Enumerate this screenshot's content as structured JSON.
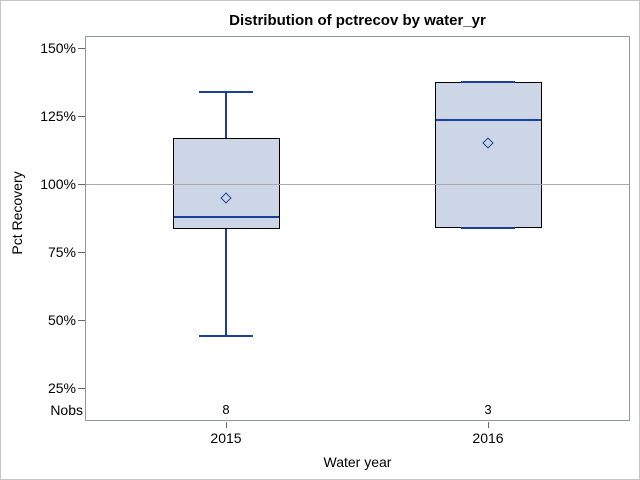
{
  "chart_data": {
    "type": "boxplot",
    "title": "Distribution of pctrecov by water_yr",
    "xlabel": "Water year",
    "ylabel": "Pct Recovery",
    "nobs_label": "Nobs",
    "y_ticks": [
      {
        "value": 150,
        "label": "150%"
      },
      {
        "value": 125,
        "label": "125%"
      },
      {
        "value": 100,
        "label": "100%"
      },
      {
        "value": 75,
        "label": "75%"
      },
      {
        "value": 50,
        "label": "50%"
      },
      {
        "value": 25,
        "label": "25%"
      }
    ],
    "ylim": [
      25,
      150
    ],
    "grid": "off",
    "legend": "none",
    "reference_line": 100,
    "mean_marker": "hollow-diamond",
    "categories": [
      "2015",
      "2016"
    ],
    "series": [
      {
        "category": "2015",
        "nobs": "8",
        "low": 44,
        "q1": 83.5,
        "median": 88,
        "q3": 117,
        "high": 134,
        "mean": 94.5
      },
      {
        "category": "2016",
        "nobs": "3",
        "low": 84,
        "q1": 84,
        "median": 123.5,
        "q3": 137.5,
        "high": 137.5,
        "mean": 115
      }
    ],
    "colors": {
      "box_fill": "#ccd6e6",
      "box_border": "#000000",
      "blue_line": "#1d3f9c",
      "wall_border": "#8f969e",
      "reference_line": "#a9a9af",
      "tick_mark": "#696969",
      "text": "#000000",
      "frame_border": "#c6c6c6"
    }
  }
}
